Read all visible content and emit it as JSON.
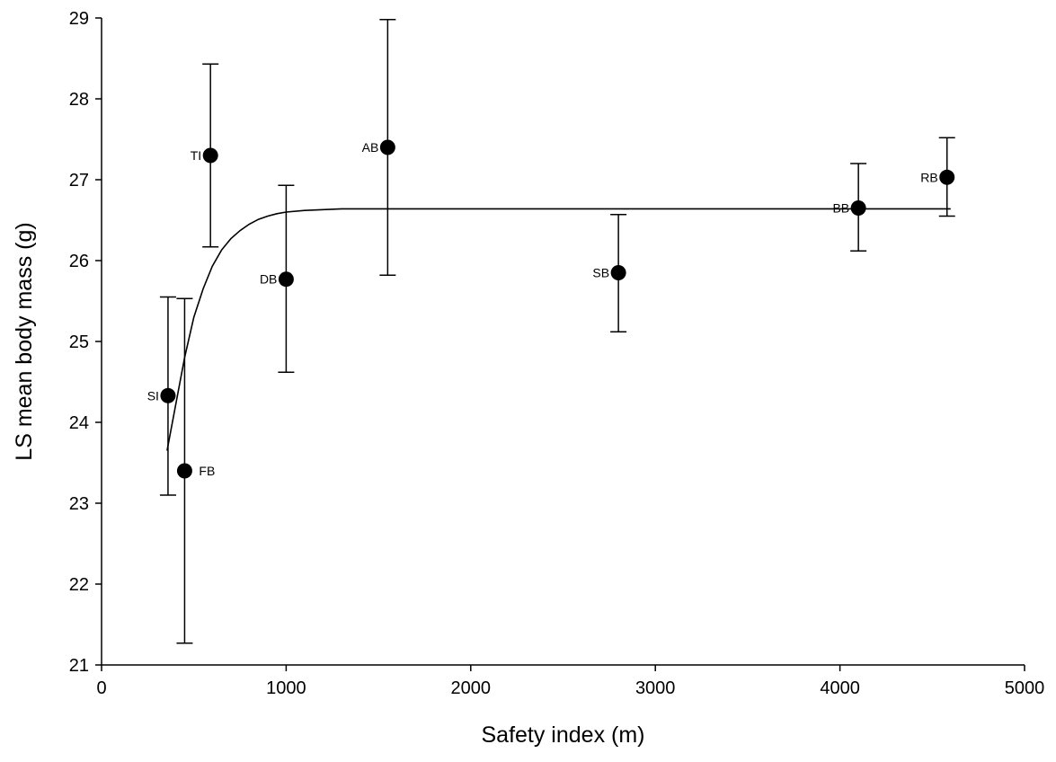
{
  "chart_data": {
    "type": "scatter",
    "xlabel": "Safety index (m)",
    "ylabel": "LS mean body mass (g)",
    "xlim": [
      0,
      5000
    ],
    "ylim": [
      21,
      29
    ],
    "xticks": [
      0,
      1000,
      2000,
      3000,
      4000,
      5000
    ],
    "yticks": [
      21,
      22,
      23,
      24,
      25,
      26,
      27,
      28,
      29
    ],
    "grid": false,
    "legend": "none",
    "points": [
      {
        "label": "SI",
        "x": 360,
        "y": 24.33,
        "err_low": 23.1,
        "err_high": 25.55,
        "label_side": "left"
      },
      {
        "label": "FB",
        "x": 450,
        "y": 23.4,
        "err_low": 21.27,
        "err_high": 25.53,
        "label_side": "right"
      },
      {
        "label": "TI",
        "x": 590,
        "y": 27.3,
        "err_low": 26.17,
        "err_high": 28.43,
        "label_side": "left"
      },
      {
        "label": "DB",
        "x": 1000,
        "y": 25.77,
        "err_low": 24.62,
        "err_high": 26.93,
        "label_side": "left"
      },
      {
        "label": "AB",
        "x": 1550,
        "y": 27.4,
        "err_low": 25.82,
        "err_high": 28.98,
        "label_side": "left"
      },
      {
        "label": "SB",
        "x": 2800,
        "y": 25.85,
        "err_low": 25.12,
        "err_high": 26.57,
        "label_side": "left"
      },
      {
        "label": "BB",
        "x": 4100,
        "y": 26.65,
        "err_low": 26.12,
        "err_high": 27.2,
        "label_side": "left"
      },
      {
        "label": "RB",
        "x": 4580,
        "y": 27.03,
        "err_low": 26.55,
        "err_high": 27.52,
        "label_side": "left"
      }
    ],
    "fit_curve": {
      "x": [
        355,
        400,
        450,
        500,
        550,
        600,
        650,
        700,
        750,
        800,
        850,
        900,
        950,
        1000,
        1100,
        1200,
        1300,
        1500,
        2000,
        2500,
        3000,
        3500,
        4000,
        4600
      ],
      "y": [
        23.65,
        24.2,
        24.8,
        25.3,
        25.65,
        25.93,
        26.13,
        26.27,
        26.37,
        26.45,
        26.51,
        26.55,
        26.58,
        26.6,
        26.62,
        26.63,
        26.64,
        26.64,
        26.64,
        26.64,
        26.64,
        26.64,
        26.64,
        26.64
      ]
    }
  }
}
